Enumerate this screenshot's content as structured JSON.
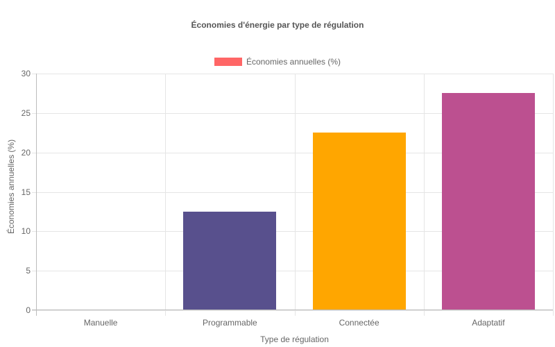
{
  "chart_data": {
    "type": "bar",
    "title": "Économies d'énergie par type de régulation",
    "xlabel": "Type de régulation",
    "ylabel": "Économies annuelles (%)",
    "categories": [
      "Manuelle",
      "Programmable",
      "Connectée",
      "Adaptatif"
    ],
    "series": [
      {
        "name": "Économies annuelles (%)",
        "values": [
          0,
          12.5,
          22.5,
          27.5
        ]
      }
    ],
    "bar_colors": [
      "#ff6384",
      "#58508d",
      "#ffa600",
      "#bc5090"
    ],
    "legend_color": "#ff6666",
    "ylim": [
      0,
      30
    ],
    "yticks": [
      0,
      5,
      10,
      15,
      20,
      25,
      30
    ],
    "grid": true,
    "legend_position": "top"
  },
  "labels": {
    "title": "Économies d'énergie par type de régulation",
    "legend": "Économies annuelles (%)",
    "xlabel": "Type de régulation",
    "ylabel": "Économies annuelles (%)"
  }
}
